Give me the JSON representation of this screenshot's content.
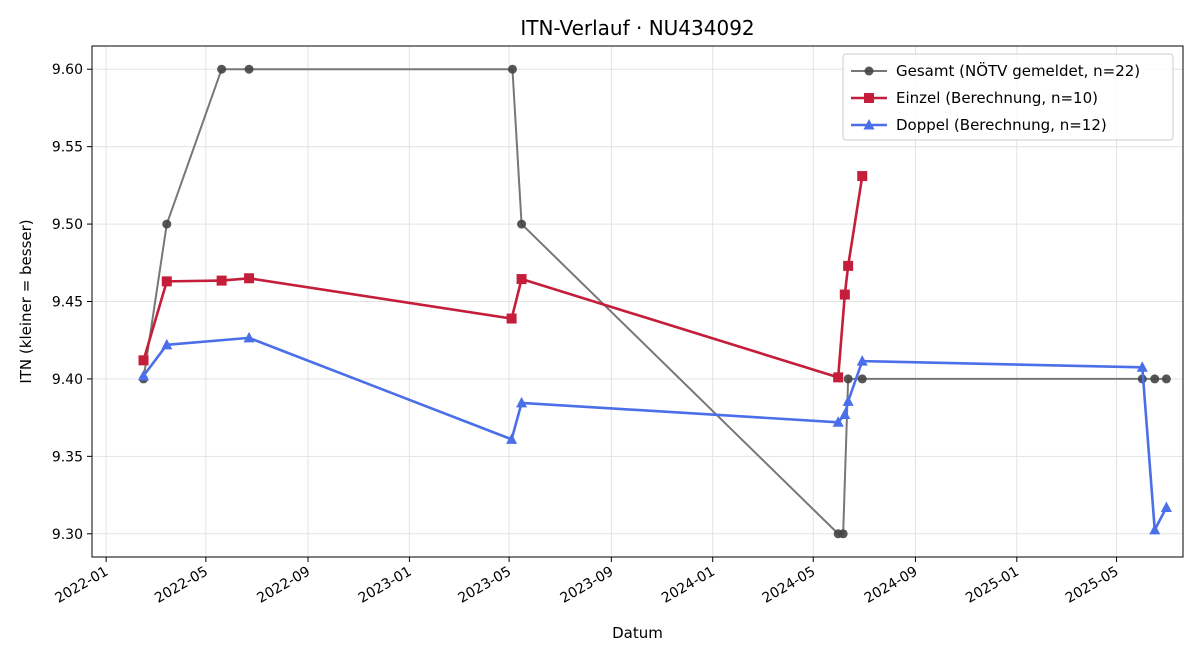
{
  "chart_data": {
    "type": "line",
    "title": "ITN-Verlauf · NU434092",
    "xlabel": "Datum",
    "ylabel": "ITN  (kleiner = besser)",
    "x_axis": "date",
    "xlim": [
      "2021-12-15",
      "2025-07-20"
    ],
    "ylim": [
      9.285,
      9.615
    ],
    "x_ticks": [
      "2022-01",
      "2022-05",
      "2022-09",
      "2023-01",
      "2023-05",
      "2023-09",
      "2024-01",
      "2024-05",
      "2024-09",
      "2025-01",
      "2025-05"
    ],
    "y_ticks": [
      "9.30",
      "9.35",
      "9.40",
      "9.45",
      "9.50",
      "9.55",
      "9.60"
    ],
    "grid": true,
    "legend_position": "top-right",
    "series": [
      {
        "name": "Gesamt (NÖTV gemeldet, n=22)",
        "color": "#777777",
        "marker": "circle",
        "points": [
          {
            "x": "2022-02-15",
            "y": 9.4
          },
          {
            "x": "2022-03-15",
            "y": 9.5
          },
          {
            "x": "2022-05-20",
            "y": 9.6
          },
          {
            "x": "2022-06-22",
            "y": 9.6
          },
          {
            "x": "2023-05-05",
            "y": 9.6
          },
          {
            "x": "2023-05-16",
            "y": 9.5
          },
          {
            "x": "2024-05-31",
            "y": 9.3
          },
          {
            "x": "2024-06-06",
            "y": 9.3
          },
          {
            "x": "2024-06-12",
            "y": 9.4
          },
          {
            "x": "2024-06-29",
            "y": 9.4
          },
          {
            "x": "2025-06-01",
            "y": 9.4
          },
          {
            "x": "2025-06-16",
            "y": 9.4
          },
          {
            "x": "2025-06-30",
            "y": 9.4
          }
        ]
      },
      {
        "name": "Einzel (Berechnung, n=10)",
        "color": "#c41e3a",
        "marker": "square",
        "points": [
          {
            "x": "2022-02-15",
            "y": 9.412
          },
          {
            "x": "2022-03-15",
            "y": 9.463
          },
          {
            "x": "2022-05-20",
            "y": 9.4635
          },
          {
            "x": "2022-06-22",
            "y": 9.465
          },
          {
            "x": "2023-05-04",
            "y": 9.439
          },
          {
            "x": "2023-05-16",
            "y": 9.4645
          },
          {
            "x": "2024-05-31",
            "y": 9.401
          },
          {
            "x": "2024-06-08",
            "y": 9.4545
          },
          {
            "x": "2024-06-12",
            "y": 9.473
          },
          {
            "x": "2024-06-29",
            "y": 9.531
          }
        ]
      },
      {
        "name": "Doppel (Berechnung, n=12)",
        "color": "#4a6fe8",
        "marker": "triangle",
        "points": [
          {
            "x": "2022-02-15",
            "y": 9.402
          },
          {
            "x": "2022-03-15",
            "y": 9.422
          },
          {
            "x": "2022-06-22",
            "y": 9.4265
          },
          {
            "x": "2023-05-04",
            "y": 9.361
          },
          {
            "x": "2023-05-16",
            "y": 9.3845
          },
          {
            "x": "2024-05-31",
            "y": 9.372
          },
          {
            "x": "2024-06-08",
            "y": 9.377
          },
          {
            "x": "2024-06-12",
            "y": 9.3855
          },
          {
            "x": "2024-06-29",
            "y": 9.4115
          },
          {
            "x": "2025-06-01",
            "y": 9.4075
          },
          {
            "x": "2025-06-16",
            "y": 9.3025
          },
          {
            "x": "2025-06-30",
            "y": 9.317
          }
        ]
      }
    ]
  }
}
